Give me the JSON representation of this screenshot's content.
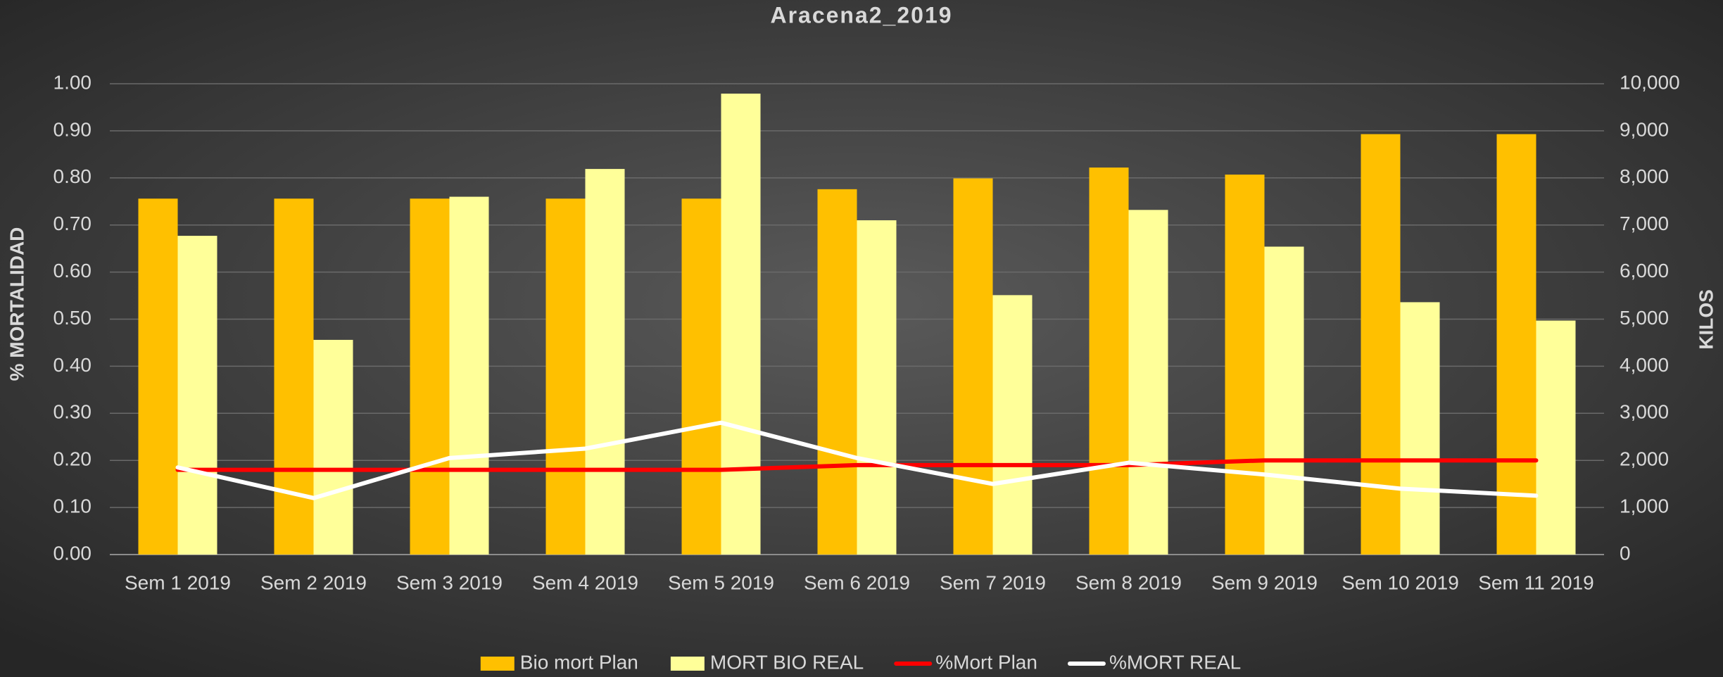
{
  "chart_data": {
    "type": "bar",
    "title": "Aracena2_2019",
    "y_label": "% MORTALIDAD",
    "y2_label": "KILOS",
    "categories": [
      "Sem 1 2019",
      "Sem 2 2019",
      "Sem 3 2019",
      "Sem 4 2019",
      "Sem 5 2019",
      "Sem 6 2019",
      "Sem 7 2019",
      "Sem 8 2019",
      "Sem 9 2019",
      "Sem 10 2019",
      "Sem 11 2019"
    ],
    "series": [
      {
        "name": "Bio mort Plan",
        "type": "bar",
        "axis": "y2",
        "color": "#FFC000",
        "values": [
          7560,
          7560,
          7560,
          7560,
          7560,
          7760,
          7990,
          8220,
          8070,
          8930,
          8930
        ]
      },
      {
        "name": "MORT BIO REAL",
        "type": "bar",
        "axis": "y2",
        "color": "#FFFF99",
        "values": [
          6770,
          4560,
          7600,
          8190,
          9790,
          7100,
          5510,
          7320,
          6540,
          5360,
          4970
        ]
      },
      {
        "name": "%Mort Plan",
        "type": "line",
        "color": "#FF0000",
        "values": [
          0.18,
          0.18,
          0.18,
          0.18,
          0.18,
          0.19,
          0.19,
          0.19,
          0.2,
          0.2,
          0.2
        ]
      },
      {
        "name": "%MORT REAL",
        "type": "line",
        "color": "#FFFFFF",
        "values": [
          0.185,
          0.12,
          0.205,
          0.225,
          0.28,
          0.205,
          0.15,
          0.195,
          0.17,
          0.14,
          0.125
        ]
      }
    ],
    "ylim": [
      0,
      1
    ],
    "yticks": [
      {
        "value": 0,
        "label": "0.00"
      },
      {
        "value": 0.1,
        "label": "0.10"
      },
      {
        "value": 0.2,
        "label": "0.20"
      },
      {
        "value": 0.3,
        "label": "0.30"
      },
      {
        "value": 0.4,
        "label": "0.40"
      },
      {
        "value": 0.5,
        "label": "0.50"
      },
      {
        "value": 0.6,
        "label": "0.60"
      },
      {
        "value": 0.7,
        "label": "0.70"
      },
      {
        "value": 0.8,
        "label": "0.80"
      },
      {
        "value": 0.9,
        "label": "0.90"
      },
      {
        "value": 1,
        "label": "1.00"
      }
    ],
    "y2lim": [
      0,
      10000
    ],
    "y2ticks": [
      0,
      {
        "value": 1000,
        "label": "1,000"
      },
      {
        "value": 2000,
        "label": "2,000"
      },
      {
        "value": 3000,
        "label": "3,000"
      },
      {
        "value": 4000,
        "label": "4,000"
      },
      {
        "value": 5000,
        "label": "5,000"
      },
      {
        "value": 6000,
        "label": "6,000"
      },
      {
        "value": 7000,
        "label": "7,000"
      },
      {
        "value": 8000,
        "label": "8,000"
      },
      {
        "value": 9000,
        "label": "9,000"
      },
      {
        "value": 10000,
        "label": "10,000"
      }
    ],
    "grid": true,
    "legend": "bottom"
  }
}
